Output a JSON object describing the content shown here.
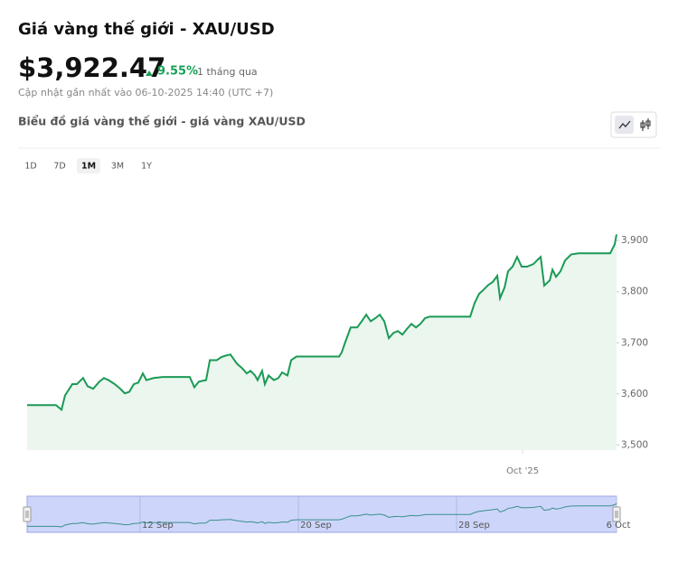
{
  "header": {
    "title": "Giá vàng thế giới - XAU/USD",
    "price": "$3,922.47",
    "change": "9.55%",
    "period": "1 tháng qua",
    "updated": "Cập nhật gần nhất vào 06-10-2025 14:40 (UTC +7)",
    "chart_title": "Biểu đồ giá vàng thế giới - giá vàng XAU/USD"
  },
  "ranges": [
    "1D",
    "7D",
    "1M",
    "3M",
    "1Y"
  ],
  "selected_range": 2,
  "chart_data": {
    "type": "line",
    "color": "#1a9a55",
    "fill": "#eaf6ee",
    "x": [
      0,
      1.47,
      1.75,
      1.93,
      2.3,
      2.53,
      2.85,
      3.08,
      3.36,
      3.68,
      3.91,
      4.14,
      4.46,
      4.74,
      4.97,
      5.2,
      5.43,
      5.66,
      5.89,
      6.07,
      6.44,
      6.9,
      8.28,
      8.51,
      8.74,
      9.11,
      9.3,
      9.66,
      9.89,
      10.12,
      10.35,
      10.68,
      10.95,
      11.18,
      11.37,
      11.6,
      11.73,
      11.96,
      12.1,
      12.29,
      12.56,
      12.79,
      12.98,
      13.25,
      13.44,
      13.71,
      14.27,
      15.88,
      16.01,
      16.2,
      16.47,
      16.8,
      17.03,
      17.26,
      17.49,
      17.72,
      17.95,
      18.18,
      18.41,
      18.64,
      18.87,
      19.1,
      19.33,
      19.56,
      19.79,
      20.02,
      20.25,
      20.48,
      22.55,
      22.78,
      23.01,
      23.24,
      23.47,
      23.7,
      23.93,
      24.07,
      24.3,
      24.48,
      24.71,
      24.94,
      25.17,
      25.45,
      25.77,
      26.0,
      26.14,
      26.32,
      26.6,
      26.74,
      26.92,
      27.15,
      27.38,
      27.7,
      28.07,
      29.68,
      29.91,
      30
    ],
    "values": [
      3578,
      3578,
      3569,
      3597,
      3619,
      3619,
      3631,
      3615,
      3610,
      3624,
      3631,
      3627,
      3619,
      3610,
      3601,
      3604,
      3619,
      3622,
      3640,
      3627,
      3631,
      3633,
      3633,
      3613,
      3624,
      3627,
      3666,
      3666,
      3672,
      3675,
      3677,
      3659,
      3650,
      3640,
      3645,
      3636,
      3627,
      3645,
      3619,
      3636,
      3627,
      3631,
      3642,
      3636,
      3666,
      3673,
      3673,
      3673,
      3681,
      3702,
      3730,
      3730,
      3742,
      3755,
      3742,
      3748,
      3755,
      3742,
      3709,
      3719,
      3723,
      3716,
      3727,
      3737,
      3730,
      3737,
      3748,
      3751,
      3751,
      3778,
      3796,
      3804,
      3813,
      3819,
      3831,
      3787,
      3808,
      3840,
      3849,
      3868,
      3849,
      3849,
      3854,
      3863,
      3868,
      3812,
      3822,
      3843,
      3829,
      3840,
      3861,
      3873,
      3875,
      3875,
      3893,
      3912
    ],
    "xlim": [
      0,
      30
    ],
    "xticks": [
      {
        "value": 25.22,
        "label": "Oct '25"
      }
    ],
    "ylim": [
      3490,
      4017
    ],
    "yticks": [
      {
        "value": 3500,
        "label": "3,500"
      },
      {
        "value": 3600,
        "label": "3,600"
      },
      {
        "value": 3700,
        "label": "3,700"
      },
      {
        "value": 3800,
        "label": "3,800"
      },
      {
        "value": 3900,
        "label": "3,900"
      }
    ],
    "navigator_ticks": [
      {
        "value": 5.75,
        "label": "12 Sep"
      },
      {
        "value": 13.81,
        "label": "20 Sep"
      },
      {
        "value": 21.86,
        "label": "28 Sep"
      },
      {
        "value": 30,
        "label": "6 Oct"
      }
    ]
  }
}
